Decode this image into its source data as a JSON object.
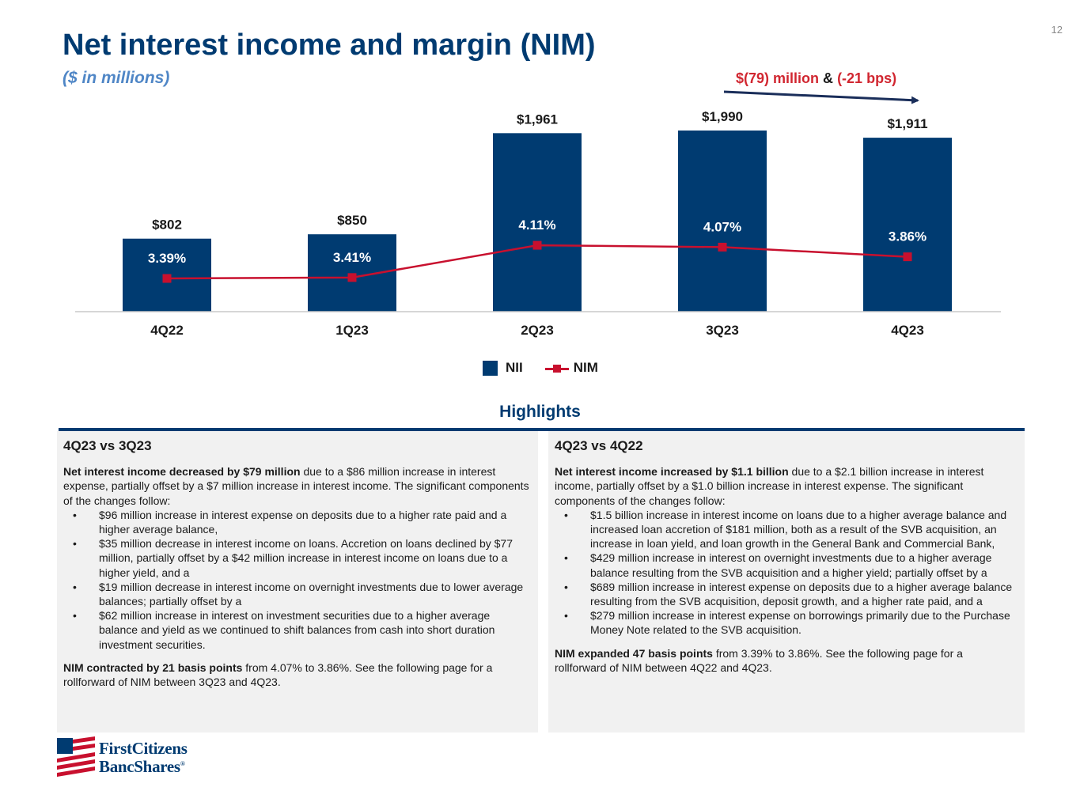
{
  "page": {
    "number": "12",
    "title": "Net interest income and margin (NIM)",
    "subtitle": "($ in millions)"
  },
  "change_note": {
    "amount": "$(79) million",
    "joiner": "&",
    "bps": "(-21 bps)"
  },
  "colors": {
    "nii_bar": "#003b71",
    "nim_line": "#c8102e",
    "accent_red": "#d12630"
  },
  "chart_data": {
    "type": "bar",
    "categories": [
      "4Q22",
      "1Q23",
      "2Q23",
      "3Q23",
      "4Q23"
    ],
    "series": [
      {
        "name": "NII",
        "type": "bar",
        "values": [
          802,
          850,
          1961,
          1990,
          1911
        ],
        "labels": [
          "$802",
          "$850",
          "$1,961",
          "$1,990",
          "$1,911"
        ]
      },
      {
        "name": "NIM",
        "type": "line",
        "values": [
          3.39,
          3.41,
          4.11,
          4.07,
          3.86
        ],
        "labels": [
          "3.39%",
          "3.41%",
          "4.11%",
          "4.07%",
          "3.86%"
        ]
      }
    ],
    "annotation": "$(79) million & (-21 bps)",
    "legend": [
      "NII",
      "NIM"
    ],
    "legend_position": "bottom-center",
    "grid": false
  },
  "legend": {
    "nii": "NII",
    "nim": "NIM"
  },
  "highlights": {
    "title": "Highlights",
    "left": {
      "heading": "4Q23 vs 3Q23",
      "intro_bold": "Net interest income decreased by $79 million",
      "intro_rest": " due to a $86 million increase in interest expense, partially offset by a $7 million increase in interest income. The significant components of the changes follow:",
      "bullets": [
        "$96 million increase in interest expense on deposits due to a higher rate paid and a higher average balance,",
        "$35 million decrease in interest income on loans. Accretion on loans declined by $77 million, partially offset by a $42 million increase in interest income on loans due to a higher yield, and a",
        "$19 million decrease in interest income on overnight investments due to lower average balances; partially offset by a",
        "$62 million increase in interest on investment securities due to a higher average balance and yield as we continued to shift balances from cash into short duration investment securities."
      ],
      "outro_bold": "NIM contracted by 21 basis points",
      "outro_rest": " from 4.07% to 3.86%. See the following page for a rollforward of NIM between 3Q23 and 4Q23."
    },
    "right": {
      "heading": "4Q23 vs 4Q22",
      "intro_bold": "Net interest income increased by $1.1 billion",
      "intro_rest": " due to a $2.1 billion increase in interest income, partially offset by a $1.0 billion increase in interest expense. The significant components of the changes follow:",
      "bullets": [
        "$1.5 billion increase in interest income on loans due to a higher average balance and increased loan accretion of $181 million, both as a result of the SVB acquisition, an increase in loan yield, and loan growth in the General Bank and Commercial Bank,",
        "$429 million increase in interest on overnight investments due to a higher average balance resulting from the SVB acquisition and a higher yield; partially offset by a",
        "$689 million increase in interest expense on deposits due to a higher average balance resulting from the SVB acquisition, deposit growth, and a higher rate paid, and a",
        "$279 million increase in interest expense on borrowings primarily due to the Purchase Money Note related to the SVB acquisition."
      ],
      "outro_bold": "NIM expanded 47 basis points",
      "outro_rest": " from 3.39% to 3.86%. See the following page for a rollforward of NIM between 4Q22 and 4Q23."
    }
  },
  "logo": {
    "line1": "FirstCitizens",
    "line2": "BancShares",
    "mark": "®"
  }
}
